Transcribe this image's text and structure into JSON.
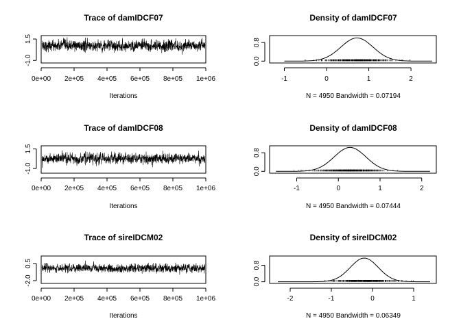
{
  "chart_data": [
    {
      "type": "line",
      "panel": "trace",
      "title": "Trace of damIDCF07",
      "xlabel": "Iterations",
      "ylabel": "",
      "xlim": [
        0,
        1000000
      ],
      "ylim": [
        -1.3,
        1.9
      ],
      "x_ticks": [
        0,
        200000,
        400000,
        600000,
        800000,
        1000000
      ],
      "x_tick_labels": [
        "0e+00",
        "2e+05",
        "4e+05",
        "6e+05",
        "8e+05",
        "1e+06"
      ],
      "y_ticks": [
        -1.0,
        1.5
      ],
      "y_tick_labels": [
        "-1.0",
        "1.5"
      ],
      "series": [
        {
          "center": 0.72,
          "spread": 0.33,
          "n": 4950,
          "color": "#000000"
        }
      ]
    },
    {
      "type": "line",
      "panel": "density",
      "title": "Density of damIDCF07",
      "xlabel": "N = 4950   Bandwidth = 0.07194",
      "ylabel": "",
      "xlim": [
        -1.35,
        2.6
      ],
      "ylim": [
        -0.08,
        1.1
      ],
      "x_ticks": [
        -1,
        0,
        1,
        2
      ],
      "x_tick_labels": [
        "-1",
        "0",
        "1",
        "2"
      ],
      "y_ticks": [
        0.0,
        0.8
      ],
      "y_tick_labels": [
        "0.0",
        "0.8"
      ],
      "curve": {
        "mean": 0.72,
        "sd": 0.38,
        "peak": 1.0,
        "from": -1.0,
        "to": 2.5
      },
      "rug": {
        "from": -0.9,
        "to": 2.3
      }
    },
    {
      "type": "line",
      "panel": "trace",
      "title": "Trace of damIDCF08",
      "xlabel": "Iterations",
      "ylabel": "",
      "xlim": [
        0,
        1000000
      ],
      "ylim": [
        -1.6,
        1.9
      ],
      "x_ticks": [
        0,
        200000,
        400000,
        600000,
        800000,
        1000000
      ],
      "x_tick_labels": [
        "0e+00",
        "2e+05",
        "4e+05",
        "6e+05",
        "8e+05",
        "1e+06"
      ],
      "y_ticks": [
        -1.0,
        1.5
      ],
      "y_tick_labels": [
        "-1.0",
        "1.5"
      ],
      "series": [
        {
          "center": 0.28,
          "spread": 0.33,
          "n": 4950,
          "color": "#000000"
        }
      ]
    },
    {
      "type": "line",
      "panel": "density",
      "title": "Density of damIDCF08",
      "xlabel": "N = 4950   Bandwidth = 0.07444",
      "ylabel": "",
      "xlim": [
        -1.65,
        2.35
      ],
      "ylim": [
        -0.08,
        1.1
      ],
      "x_ticks": [
        -1,
        0,
        1,
        2
      ],
      "x_tick_labels": [
        "-1",
        "0",
        "1",
        "2"
      ],
      "y_ticks": [
        0.0,
        0.8
      ],
      "y_tick_labels": [
        "0.0",
        "0.8"
      ],
      "curve": {
        "mean": 0.28,
        "sd": 0.38,
        "peak": 1.03,
        "from": -1.5,
        "to": 2.2
      },
      "rug": {
        "from": -1.2,
        "to": 1.9
      }
    },
    {
      "type": "line",
      "panel": "trace",
      "title": "Trace of sireIDCM02",
      "xlabel": "Iterations",
      "ylabel": "",
      "xlim": [
        0,
        1000000
      ],
      "ylim": [
        -2.4,
        1.6
      ],
      "x_ticks": [
        0,
        200000,
        400000,
        600000,
        800000,
        1000000
      ],
      "x_tick_labels": [
        "0e+00",
        "2e+05",
        "4e+05",
        "6e+05",
        "8e+05",
        "1e+06"
      ],
      "y_ticks": [
        -2.0,
        0.5
      ],
      "y_tick_labels": [
        "-2.0",
        "0.5"
      ],
      "series": [
        {
          "center": -0.2,
          "spread": 0.3,
          "n": 4950,
          "color": "#000000"
        }
      ]
    },
    {
      "type": "line",
      "panel": "density",
      "title": "Density of sireIDCM02",
      "xlabel": "N = 4950   Bandwidth = 0.06349",
      "ylabel": "",
      "xlim": [
        -2.5,
        1.55
      ],
      "ylim": [
        -0.08,
        1.25
      ],
      "x_ticks": [
        -2,
        -1,
        0,
        1
      ],
      "x_tick_labels": [
        "-2",
        "-1",
        "0",
        "1"
      ],
      "y_ticks": [
        0.0,
        0.8
      ],
      "y_tick_labels": [
        "0.0",
        "0.8"
      ],
      "curve": {
        "mean": -0.2,
        "sd": 0.34,
        "peak": 1.15,
        "from": -2.3,
        "to": 1.4
      },
      "rug": {
        "from": -1.5,
        "to": 1.2
      }
    }
  ]
}
